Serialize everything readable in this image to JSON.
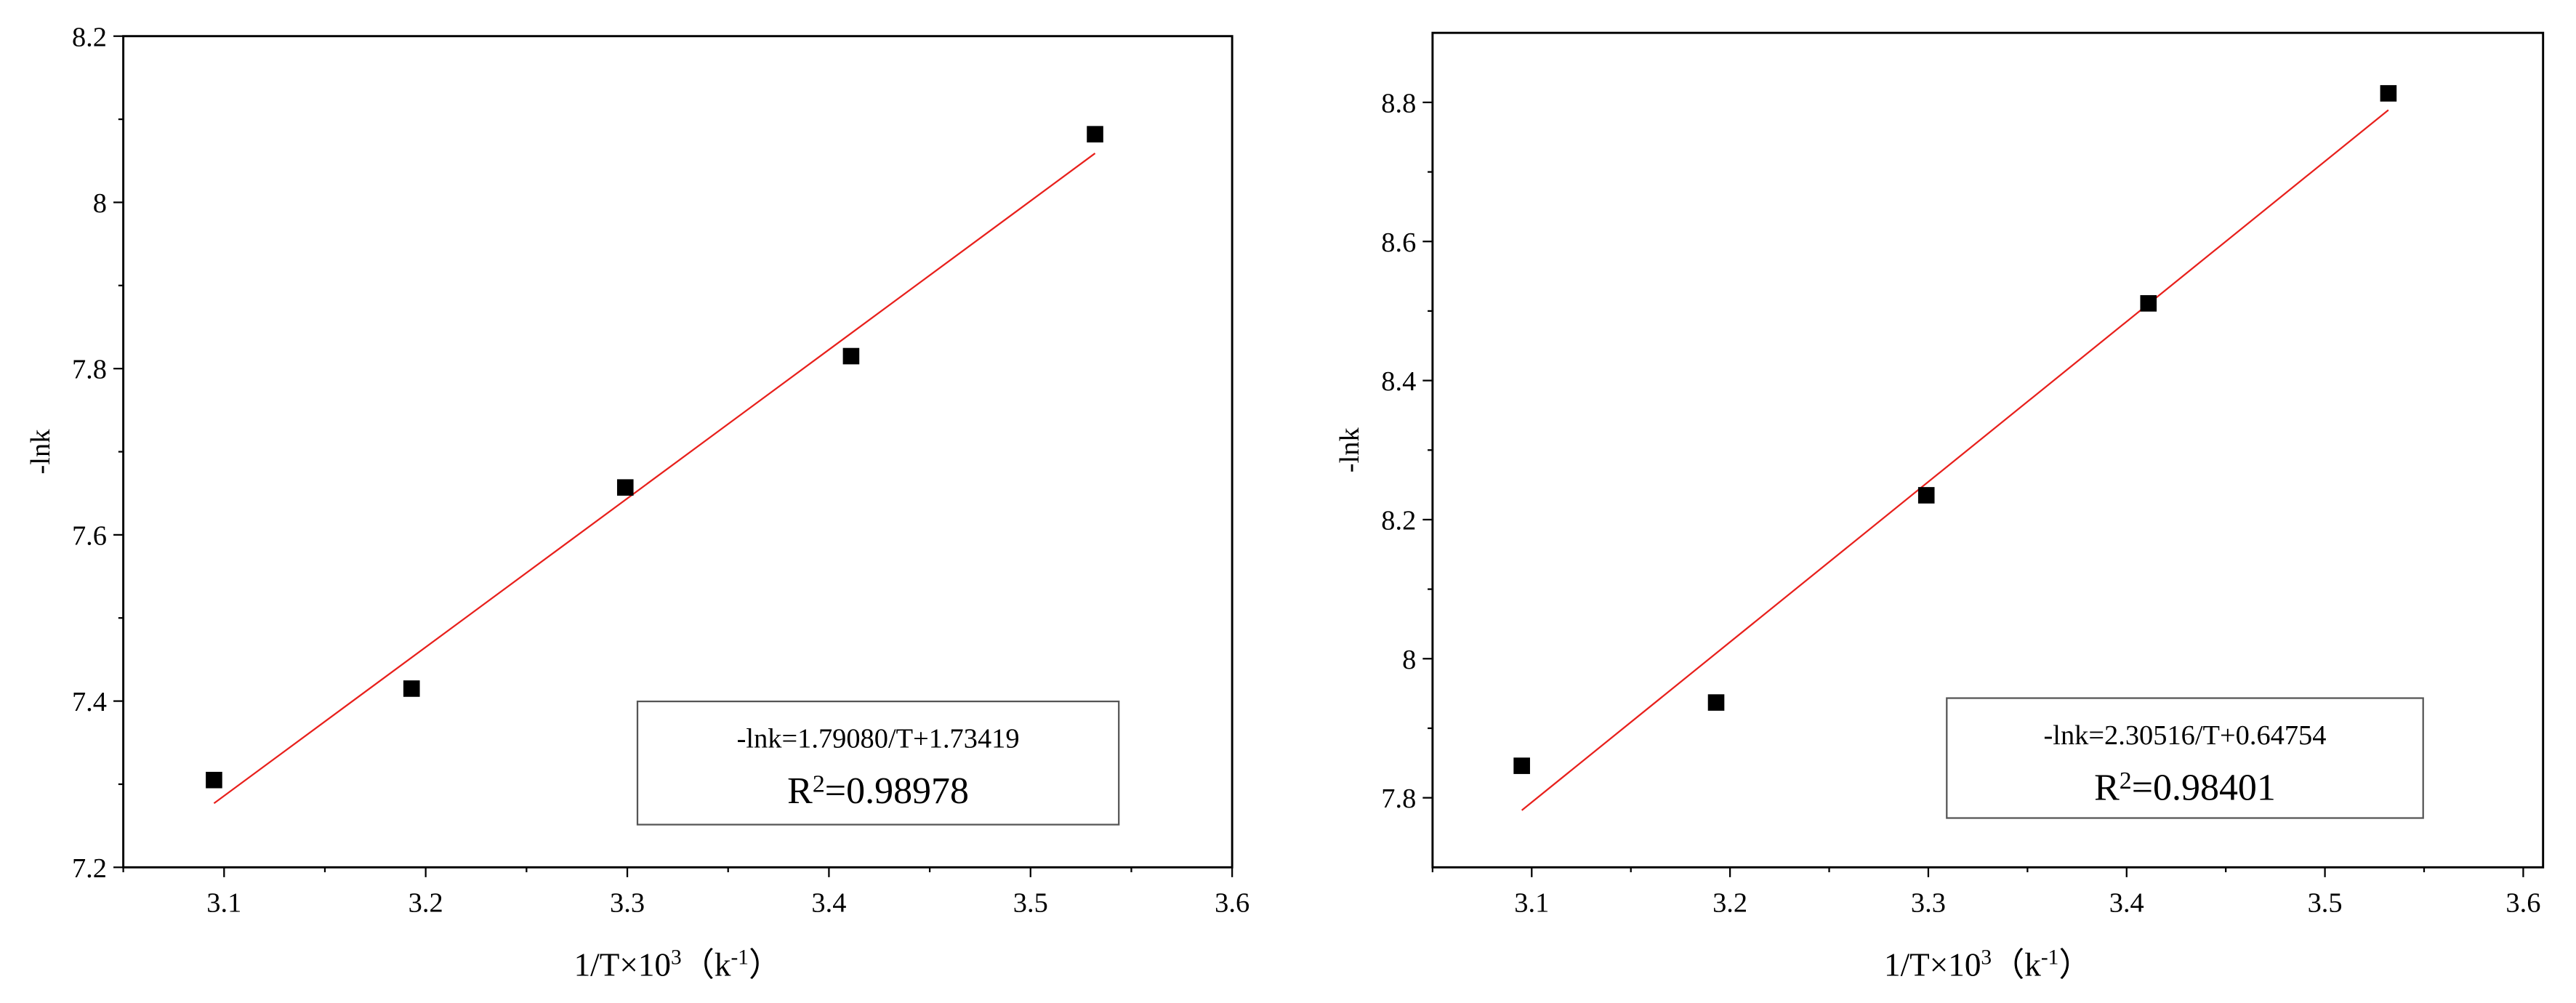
{
  "chart_data": [
    {
      "type": "scatter",
      "ylabel": "-lnk",
      "xlabel": [
        "1/T×10",
        "3",
        "（k",
        "-1",
        "）"
      ],
      "x": [
        3.095,
        3.193,
        3.299,
        3.411,
        3.532
      ],
      "values": [
        7.305,
        7.415,
        7.657,
        7.815,
        8.082
      ],
      "color": "#000000",
      "fit": {
        "color": "#e8201c",
        "x": [
          3.095,
          3.532
        ],
        "values": [
          7.277,
          8.059
        ]
      },
      "equation": "-lnk=1.79080/T+1.73419",
      "r_squared": [
        "R",
        "2",
        "=0.98978"
      ],
      "xlim": [
        3.05,
        3.6
      ],
      "xticks": [
        3.1,
        3.2,
        3.3,
        3.4,
        3.5,
        3.6
      ],
      "ylim": [
        7.2,
        8.2
      ],
      "yticks": [
        7.2,
        7.4,
        7.6,
        7.8,
        8.0,
        8.2
      ]
    },
    {
      "type": "scatter",
      "ylabel": "-lnk",
      "xlabel": [
        "1/T×10",
        "3",
        "（k",
        "-1",
        "）"
      ],
      "x": [
        3.095,
        3.193,
        3.299,
        3.411,
        3.532
      ],
      "values": [
        7.846,
        7.937,
        8.235,
        8.511,
        8.813
      ],
      "color": "#000000",
      "fit": {
        "color": "#e8201c",
        "x": [
          3.095,
          3.532
        ],
        "values": [
          7.782,
          8.789
        ]
      },
      "equation": "-lnk=2.30516/T+0.64754",
      "r_squared": [
        "R",
        "2",
        "=0.98401"
      ],
      "xlim": [
        3.05,
        3.61
      ],
      "xticks": [
        3.1,
        3.2,
        3.3,
        3.4,
        3.5,
        3.6
      ],
      "ylim": [
        7.7,
        8.9
      ],
      "yticks": [
        7.8,
        8.0,
        8.2,
        8.4,
        8.6,
        8.8
      ]
    }
  ]
}
